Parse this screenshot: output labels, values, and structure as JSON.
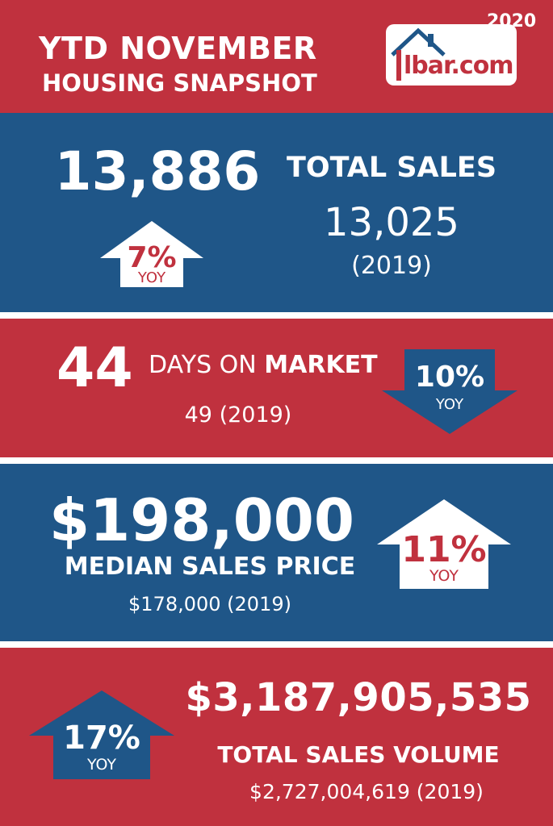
{
  "header": {
    "title_line1": "YTD NOVEMBER",
    "title_line2": "HOUSING SNAPSHOT",
    "year": "2020",
    "logo_text": "lbar.com"
  },
  "total_sales": {
    "value": "13,886",
    "label": "TOTAL SALES",
    "prior_value": "13,025",
    "prior_year": "(2019)",
    "change_pct": "7%",
    "change_label": "YOY",
    "direction": "up-arrow-icon"
  },
  "days_on_market": {
    "value": "44",
    "label_plain": "DAYS ON ",
    "label_bold": "MARKET",
    "prior": "49 (2019)",
    "change_pct": "10%",
    "change_label": "YOY",
    "direction": "down-arrow-icon"
  },
  "median_price": {
    "value": "$198,000",
    "label": "MEDIAN SALES PRICE",
    "prior": "$178,000 (2019)",
    "change_pct": "11%",
    "change_label": "YOY",
    "direction": "up-arrow-icon"
  },
  "sales_volume": {
    "value": "$3,187,905,535",
    "label": "TOTAL SALES VOLUME",
    "prior": "$2,727,004,619 (2019)",
    "change_pct": "17%",
    "change_label": "YOY",
    "direction": "up-arrow-icon"
  },
  "colors": {
    "red": "#c0313e",
    "blue": "#1f5688",
    "white": "#ffffff"
  }
}
